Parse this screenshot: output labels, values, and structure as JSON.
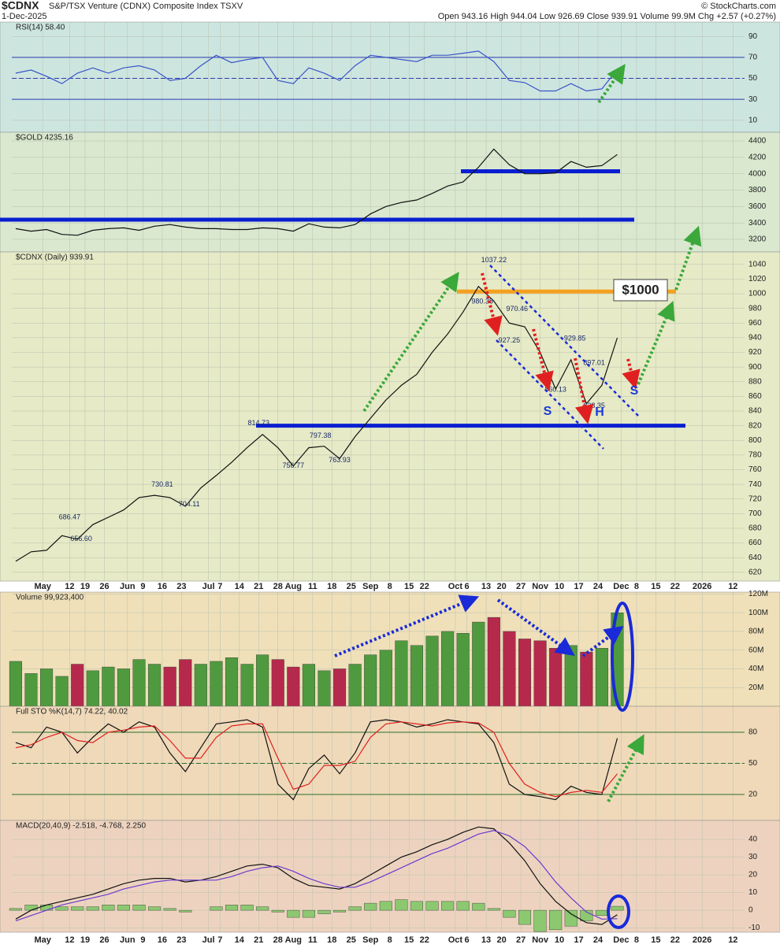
{
  "header": {
    "symbol": "$CDNX",
    "name": "S&P/TSX Venture (CDNX) Composite Index TSXV",
    "date": "1-Dec-2025",
    "quote": "Open 943.16  High 944.04  Low 926.69  Close 939.91  Volume 99.9M  Chg +2.57 (+0.27%)",
    "credit": "© StockCharts.com"
  },
  "chart_data": {
    "type": "financial",
    "x": [
      0,
      4,
      8,
      12,
      16,
      20,
      24,
      28,
      32,
      36,
      40,
      44,
      48,
      52,
      56,
      60,
      64,
      68,
      72,
      76,
      80,
      84,
      88,
      92,
      96,
      100,
      104,
      108,
      112,
      116,
      120,
      124,
      128,
      132,
      136,
      140,
      144,
      148,
      152,
      156
    ],
    "xlim": [
      -1,
      189
    ],
    "xticks": [
      {
        "value": 7,
        "label": "May"
      },
      {
        "value": 14,
        "label": "12"
      },
      {
        "value": 18,
        "label": "19"
      },
      {
        "value": 23,
        "label": "26"
      },
      {
        "value": 29,
        "label": "Jun"
      },
      {
        "value": 33,
        "label": "9"
      },
      {
        "value": 38,
        "label": "16"
      },
      {
        "value": 43,
        "label": "23"
      },
      {
        "value": 50,
        "label": "Jul"
      },
      {
        "value": 53,
        "label": "7"
      },
      {
        "value": 58,
        "label": "14"
      },
      {
        "value": 63,
        "label": "21"
      },
      {
        "value": 68,
        "label": "28"
      },
      {
        "value": 72,
        "label": "Aug"
      },
      {
        "value": 77,
        "label": "11"
      },
      {
        "value": 82,
        "label": "18"
      },
      {
        "value": 87,
        "label": "25"
      },
      {
        "value": 92,
        "label": "Sep"
      },
      {
        "value": 97,
        "label": "8"
      },
      {
        "value": 102,
        "label": "15"
      },
      {
        "value": 106,
        "label": "22"
      },
      {
        "value": 114,
        "label": "Oct"
      },
      {
        "value": 117,
        "label": "6"
      },
      {
        "value": 122,
        "label": "13"
      },
      {
        "value": 126,
        "label": "20"
      },
      {
        "value": 131,
        "label": "27"
      },
      {
        "value": 136,
        "label": "Nov"
      },
      {
        "value": 141,
        "label": "10"
      },
      {
        "value": 146,
        "label": "17"
      },
      {
        "value": 151,
        "label": "24"
      },
      {
        "value": 157,
        "label": "Dec"
      },
      {
        "value": 161,
        "label": "8"
      },
      {
        "value": 166,
        "label": "15"
      },
      {
        "value": 171,
        "label": "22"
      },
      {
        "value": 178,
        "label": "2026"
      },
      {
        "value": 186,
        "label": "12"
      }
    ],
    "annotations": [
      "$1000",
      "S",
      "H",
      "S"
    ],
    "panels": [
      {
        "type": "line",
        "label": "RSI(14) 58.40",
        "background": "#cde5df",
        "ylim": [
          -1.4,
          103.7
        ],
        "yticks": [
          10,
          30,
          50,
          70,
          90
        ],
        "levels": [
          {
            "value": 70,
            "color": "#2a3bb0"
          },
          {
            "value": 50,
            "color": "#2a3bb0"
          },
          {
            "value": 30,
            "color": "#2a3bb0"
          }
        ],
        "series": [
          {
            "type": "line",
            "color": "#3a55c8",
            "values": [
              55,
              58,
              52,
              45,
              55,
              60,
              55,
              60,
              62,
              58,
              48,
              50,
              62,
              72,
              65,
              68,
              70,
              48,
              45,
              60,
              55,
              48,
              62,
              72,
              70,
              68,
              66,
              72,
              72,
              74,
              76,
              66,
              48,
              46,
              38,
              38,
              45,
              38,
              40,
              58.4
            ]
          }
        ]
      },
      {
        "type": "line",
        "label": "$GOLD 4235.16",
        "background": "#d9e8cf",
        "ylim": [
          3046,
          4506
        ],
        "yticks": [
          3200,
          3400,
          3600,
          3800,
          4000,
          4200,
          4400
        ],
        "levels": [
          {
            "value": 3440,
            "color": "#0a1ed2"
          },
          {
            "value": 4030,
            "color": "#0a1ed2"
          }
        ],
        "series": [
          {
            "type": "line",
            "color": "#111111",
            "values": [
              3330,
              3300,
              3320,
              3260,
              3250,
              3310,
              3330,
              3340,
              3310,
              3360,
              3380,
              3350,
              3330,
              3330,
              3320,
              3320,
              3340,
              3330,
              3300,
              3390,
              3350,
              3340,
              3380,
              3510,
              3600,
              3650,
              3680,
              3760,
              3850,
              3900,
              4080,
              4300,
              4110,
              4000,
              4000,
              4010,
              4150,
              4080,
              4100,
              4235.16
            ]
          }
        ]
      },
      {
        "type": "line",
        "label": "$CDNX (Daily) 939.91",
        "background": "#e6eac6",
        "ylim": [
          608,
          1057
        ],
        "yticks": [
          620,
          640,
          660,
          680,
          700,
          720,
          740,
          760,
          780,
          800,
          820,
          840,
          860,
          880,
          900,
          920,
          940,
          960,
          980,
          1000,
          1020,
          1040
        ],
        "levels": [
          {
            "value": 820,
            "color": "#0a1ed2"
          },
          {
            "value": 1003,
            "color": "#f5a020"
          }
        ],
        "series": [
          {
            "type": "line",
            "color": "#111111",
            "values": [
              635,
              648,
              650,
              670,
              665,
              685,
              695,
              705,
              722,
              725,
              722,
              710,
              735,
              752,
              770,
              790,
              808,
              790,
              765,
              790,
              792,
              775,
              805,
              830,
              855,
              875,
              890,
              920,
              945,
              975,
              1010,
              990,
              960,
              955,
              920,
              870,
              910,
              850,
              875,
              939.91
            ]
          }
        ],
        "price_labels": [
          {
            "x": 14,
            "value": 686.47
          },
          {
            "x": 17,
            "value": 656.6,
            "label": "656.60"
          },
          {
            "x": 38,
            "value": 730.81
          },
          {
            "x": 45,
            "value": 704.11
          },
          {
            "x": 63,
            "value": 814.73
          },
          {
            "x": 72,
            "value": 756.77
          },
          {
            "x": 79,
            "value": 797.38
          },
          {
            "x": 84,
            "value": 763.93
          },
          {
            "x": 124,
            "value": 1037.22
          },
          {
            "x": 121,
            "value": 980.38
          },
          {
            "x": 130,
            "value": 970.46
          },
          {
            "x": 128,
            "value": 927.25
          },
          {
            "x": 145,
            "value": 929.85
          },
          {
            "x": 150,
            "value": 897.01
          },
          {
            "x": 140,
            "value": 860.13
          },
          {
            "x": 150,
            "value": 838.35
          }
        ]
      },
      {
        "type": "bar",
        "label": "Volume 99,923,400",
        "background": "#efe0b9",
        "ylim": [
          0,
          122
        ],
        "yticks": [
          {
            "value": 20,
            "label": "20M"
          },
          {
            "value": 40,
            "label": "40M"
          },
          {
            "value": 60,
            "label": "60M"
          },
          {
            "value": 80,
            "label": "80M"
          },
          {
            "value": 100,
            "label": "100M"
          },
          {
            "value": 120,
            "label": "120M"
          }
        ],
        "series": [
          {
            "type": "bar",
            "color": "#4f9a3e",
            "down_color": "#b52a4c",
            "values": [
              48,
              35,
              40,
              32,
              45,
              38,
              42,
              40,
              50,
              45,
              42,
              50,
              45,
              48,
              52,
              45,
              55,
              50,
              42,
              45,
              38,
              40,
              45,
              55,
              60,
              70,
              65,
              75,
              80,
              78,
              90,
              95,
              80,
              72,
              70,
              62,
              65,
              58,
              62,
              99.9
            ]
          }
        ]
      },
      {
        "type": "line",
        "label": "Full STO %K(14,7) 74.22, 40.02",
        "background": "#efd9b9",
        "ylim": [
          -5,
          105
        ],
        "yticks": [
          20,
          50,
          80
        ],
        "levels": [
          {
            "value": 80,
            "color": "#2c6e2c"
          },
          {
            "value": 50,
            "color": "#2c6e2c"
          },
          {
            "value": 20,
            "color": "#2c6e2c"
          }
        ],
        "series": [
          {
            "type": "line",
            "color": "#111111",
            "values": [
              70,
              65,
              85,
              80,
              60,
              75,
              88,
              80,
              90,
              85,
              60,
              42,
              65,
              88,
              90,
              92,
              85,
              30,
              15,
              45,
              58,
              40,
              60,
              90,
              92,
              90,
              85,
              88,
              92,
              90,
              88,
              70,
              30,
              20,
              18,
              15,
              28,
              22,
              20,
              74.22
            ]
          },
          {
            "type": "line",
            "color": "#e02020",
            "values": [
              65,
              68,
              75,
              80,
              72,
              70,
              80,
              82,
              85,
              86,
              72,
              55,
              55,
              75,
              86,
              88,
              88,
              55,
              25,
              30,
              48,
              48,
              52,
              75,
              88,
              90,
              88,
              86,
              89,
              90,
              89,
              80,
              50,
              30,
              22,
              18,
              22,
              24,
              22,
              40.02
            ]
          }
        ]
      },
      {
        "type": "line",
        "label": "MACD(20,40,9) -2.518, -4.768, 2.250",
        "background": "#edd3bf",
        "ylim": [
          -12.4,
          50.7
        ],
        "yticks": [
          -10,
          0,
          10,
          20,
          30,
          40
        ],
        "series": [
          {
            "type": "bar",
            "color": "#8cc870",
            "values": [
              1,
              3,
              3,
              2,
              2,
              2,
              3,
              3,
              3,
              2,
              1,
              -1,
              0,
              2,
              3,
              3,
              2,
              -1,
              -4,
              -4,
              -2,
              -1,
              2,
              4,
              5,
              6,
              5,
              5,
              5,
              5,
              4,
              1,
              -4,
              -8,
              -12,
              -11,
              -9,
              -6,
              -3,
              2.25
            ]
          },
          {
            "type": "line",
            "color": "#111111",
            "values": [
              -5,
              0,
              3,
              5,
              7,
              9,
              12,
              15,
              17,
              18,
              18,
              16,
              17,
              19,
              22,
              25,
              26,
              24,
              18,
              14,
              13,
              12,
              15,
              20,
              25,
              30,
              33,
              37,
              40,
              44,
              47,
              46,
              38,
              28,
              15,
              5,
              -2,
              -7,
              -8,
              -2.518
            ]
          },
          {
            "type": "line",
            "color": "#6a3ad0",
            "values": [
              -6,
              -3,
              0,
              3,
              5,
              7,
              9,
              12,
              14,
              16,
              17,
              17,
              17,
              17,
              19,
              22,
              24,
              25,
              22,
              18,
              15,
              13,
              13,
              16,
              20,
              24,
              28,
              32,
              35,
              39,
              43,
              45,
              42,
              36,
              27,
              16,
              7,
              -1,
              -5,
              -4.768
            ]
          }
        ]
      }
    ]
  }
}
